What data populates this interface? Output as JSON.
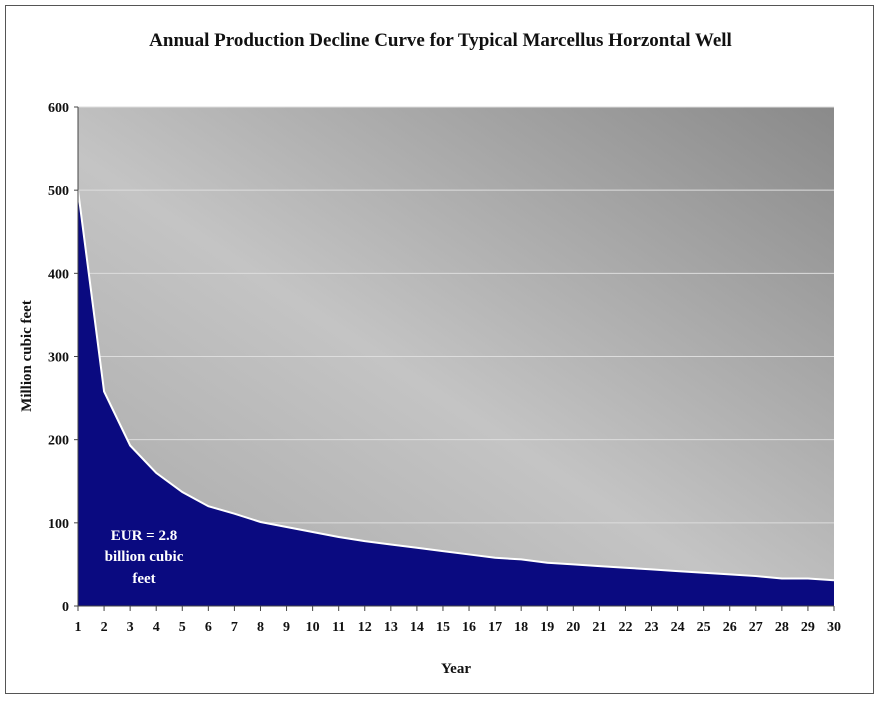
{
  "chart_data": {
    "type": "area",
    "title": "Annual Production Decline Curve for Typical Marcellus Horzontal Well",
    "xlabel": "Year",
    "ylabel": "Million cubic feet",
    "x": [
      1,
      2,
      3,
      4,
      5,
      6,
      7,
      8,
      9,
      10,
      11,
      12,
      13,
      14,
      15,
      16,
      17,
      18,
      19,
      20,
      21,
      22,
      23,
      24,
      25,
      26,
      27,
      28,
      29,
      30
    ],
    "values": [
      500,
      258,
      193,
      160,
      137,
      120,
      111,
      101,
      95,
      89,
      83,
      78,
      74,
      70,
      66,
      62,
      58,
      56,
      52,
      50,
      48,
      46,
      44,
      42,
      40,
      38,
      36,
      33,
      33,
      31
    ],
    "ylim": [
      0,
      600
    ],
    "yticks": [
      0,
      100,
      200,
      300,
      400,
      500,
      600
    ],
    "grid": true,
    "annotation": [
      "EUR = 2.8",
      "billion cubic",
      "feet"
    ],
    "colors": {
      "fill": "#0a0a80",
      "line": "#ffffff",
      "grid": "#dddddd"
    }
  }
}
